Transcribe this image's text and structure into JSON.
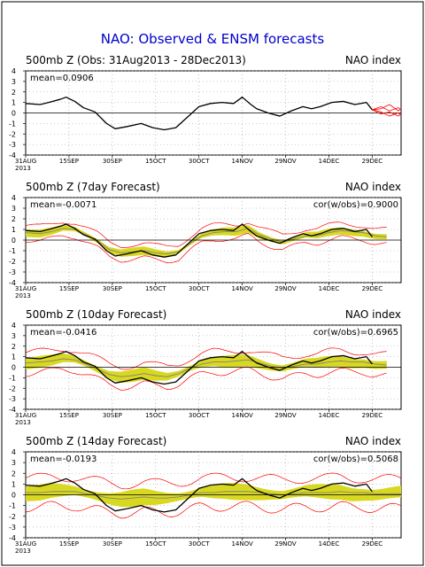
{
  "page": {
    "main_title": "NAO: Observed & ENSM forecasts",
    "year_label": "2013"
  },
  "colors": {
    "title": "#0000cc",
    "observed": "#000000",
    "ensemble": "#ff0000",
    "spread": "#d8d820",
    "ensemble_mean": "#808080",
    "zero_line": "#000000",
    "grid": "#999999"
  },
  "chart_data": [
    {
      "type": "line",
      "title": "500mb Z (Obs: 31Aug2013 - 28Dec2013)",
      "right_label": "NAO index",
      "mean_label": "mean=0.0906",
      "cor_label": "",
      "xlim": [
        0,
        130
      ],
      "ylim": [
        -4,
        4
      ],
      "yticks": [
        -4,
        -3,
        -2,
        -1,
        0,
        1,
        2,
        3,
        4
      ],
      "xtick_labels": [
        "31AUG",
        "15SEP",
        "30SEP",
        "15OCT",
        "30OCT",
        "14NOV",
        "29NOV",
        "14DEC",
        "29DEC"
      ],
      "xticks": [
        0,
        15,
        30,
        45,
        60,
        75,
        90,
        105,
        120
      ],
      "grid": "dotted",
      "observed": {
        "x": [
          0,
          5,
          8,
          12,
          14,
          17,
          20,
          24,
          28,
          31,
          35,
          40,
          44,
          48,
          52,
          56,
          60,
          64,
          68,
          72,
          75,
          78,
          80,
          84,
          88,
          92,
          96,
          99,
          102,
          106,
          110,
          114,
          118,
          120
        ],
        "y": [
          0.9,
          0.8,
          1.0,
          1.3,
          1.5,
          1.1,
          0.5,
          0.1,
          -1.0,
          -1.5,
          -1.3,
          -1.0,
          -1.4,
          -1.6,
          -1.4,
          -0.4,
          0.6,
          0.9,
          1.0,
          0.9,
          1.5,
          0.8,
          0.4,
          0.0,
          -0.3,
          0.2,
          0.6,
          0.4,
          0.6,
          1.0,
          1.1,
          0.8,
          1.0,
          0.3
        ]
      },
      "ensemble_forecasts": [
        {
          "x": [
            120,
            123,
            126,
            129,
            130
          ],
          "y": [
            0.3,
            0.6,
            0.2,
            0.5,
            0.3
          ]
        },
        {
          "x": [
            120,
            123,
            126,
            129,
            130
          ],
          "y": [
            0.3,
            0.1,
            -0.3,
            0.0,
            -0.2
          ]
        },
        {
          "x": [
            120,
            123,
            126,
            129,
            130
          ],
          "y": [
            0.3,
            0.4,
            0.8,
            0.2,
            0.4
          ]
        },
        {
          "x": [
            120,
            123,
            126,
            129,
            130
          ],
          "y": [
            0.3,
            -0.1,
            0.1,
            -0.3,
            -0.1
          ]
        }
      ]
    },
    {
      "type": "line",
      "title": "500mb Z (7day Forecast)",
      "right_label": "NAO index",
      "mean_label": "mean=-0.0071",
      "cor_label": "cor(w/obs)=0.9000",
      "xlim": [
        0,
        130
      ],
      "ylim": [
        -4,
        4
      ],
      "yticks": [
        -4,
        -3,
        -2,
        -1,
        0,
        1,
        2,
        3,
        4
      ],
      "xtick_labels": [
        "31AUG",
        "15SEP",
        "30SEP",
        "15OCT",
        "30OCT",
        "14NOV",
        "29NOV",
        "14DEC",
        "29DEC"
      ],
      "xticks": [
        0,
        15,
        30,
        45,
        60,
        75,
        90,
        105,
        120
      ],
      "grid": "dotted",
      "spread_halfwidth": 0.4,
      "envelope_halfwidth": 0.9,
      "observed": {
        "x": [
          0,
          5,
          8,
          12,
          14,
          17,
          20,
          24,
          28,
          31,
          35,
          40,
          44,
          48,
          52,
          56,
          60,
          64,
          68,
          72,
          75,
          78,
          80,
          84,
          88,
          92,
          96,
          99,
          102,
          106,
          110,
          114,
          118,
          120
        ],
        "y": [
          0.9,
          0.8,
          1.0,
          1.3,
          1.5,
          1.1,
          0.5,
          0.1,
          -1.0,
          -1.5,
          -1.3,
          -1.0,
          -1.4,
          -1.6,
          -1.4,
          -0.4,
          0.6,
          0.9,
          1.0,
          0.9,
          1.5,
          0.8,
          0.4,
          0.0,
          -0.3,
          0.2,
          0.6,
          0.4,
          0.6,
          1.0,
          1.1,
          0.8,
          1.0,
          0.3
        ]
      },
      "ensemble_mean": {
        "x": [
          0,
          5,
          9,
          13,
          17,
          21,
          25,
          29,
          33,
          37,
          41,
          45,
          49,
          53,
          57,
          61,
          65,
          69,
          73,
          77,
          81,
          85,
          89,
          93,
          97,
          101,
          105,
          109,
          113,
          117,
          121,
          125
        ],
        "y": [
          0.7,
          0.6,
          0.8,
          1.1,
          1.0,
          0.5,
          -0.1,
          -0.9,
          -1.2,
          -1.1,
          -1.0,
          -1.2,
          -1.3,
          -1.1,
          -0.3,
          0.4,
          0.7,
          0.8,
          0.8,
          1.1,
          0.5,
          0.1,
          -0.2,
          0.1,
          0.4,
          0.4,
          0.7,
          0.9,
          0.8,
          0.7,
          0.4,
          0.3
        ]
      }
    },
    {
      "type": "line",
      "title": "500mb Z (10day Forecast)",
      "right_label": "NAO index",
      "mean_label": "mean=-0.0416",
      "cor_label": "cor(w/obs)=0.6965",
      "xlim": [
        0,
        130
      ],
      "ylim": [
        -4,
        4
      ],
      "yticks": [
        -4,
        -3,
        -2,
        -1,
        0,
        1,
        2,
        3,
        4
      ],
      "xtick_labels": [
        "31AUG",
        "15SEP",
        "30SEP",
        "15OCT",
        "30OCT",
        "14NOV",
        "29NOV",
        "14DEC",
        "29DEC"
      ],
      "xticks": [
        0,
        15,
        30,
        45,
        60,
        75,
        90,
        105,
        120
      ],
      "grid": "dotted",
      "spread_halfwidth": 0.6,
      "envelope_halfwidth": 1.3,
      "observed": {
        "x": [
          0,
          5,
          8,
          12,
          14,
          17,
          20,
          24,
          28,
          31,
          35,
          40,
          44,
          48,
          52,
          56,
          60,
          64,
          68,
          72,
          75,
          78,
          80,
          84,
          88,
          92,
          96,
          99,
          102,
          106,
          110,
          114,
          118,
          120
        ],
        "y": [
          0.9,
          0.8,
          1.0,
          1.3,
          1.5,
          1.1,
          0.5,
          0.1,
          -1.0,
          -1.5,
          -1.3,
          -1.0,
          -1.4,
          -1.6,
          -1.4,
          -0.4,
          0.6,
          0.9,
          1.0,
          0.9,
          1.5,
          0.8,
          0.4,
          0.0,
          -0.3,
          0.2,
          0.6,
          0.4,
          0.6,
          1.0,
          1.1,
          0.8,
          1.0,
          0.3
        ]
      },
      "ensemble_mean": {
        "x": [
          0,
          5,
          9,
          13,
          17,
          21,
          25,
          29,
          33,
          37,
          41,
          45,
          49,
          53,
          57,
          61,
          65,
          69,
          73,
          77,
          81,
          85,
          89,
          93,
          97,
          101,
          105,
          109,
          113,
          117,
          121,
          125
        ],
        "y": [
          0.4,
          0.5,
          0.6,
          0.8,
          0.7,
          0.3,
          -0.2,
          -0.7,
          -0.9,
          -0.8,
          -0.6,
          -0.8,
          -0.9,
          -0.6,
          -0.1,
          0.3,
          0.5,
          0.5,
          0.6,
          0.7,
          0.4,
          0.1,
          -0.1,
          0.1,
          0.3,
          0.3,
          0.5,
          0.6,
          0.5,
          0.5,
          0.3,
          0.2
        ]
      }
    },
    {
      "type": "line",
      "title": "500mb Z (14day Forecast)",
      "right_label": "NAO index",
      "mean_label": "mean=-0.0193",
      "cor_label": "cor(w/obs)=0.5068",
      "xlim": [
        0,
        130
      ],
      "ylim": [
        -4,
        4
      ],
      "yticks": [
        -4,
        -3,
        -2,
        -1,
        0,
        1,
        2,
        3,
        4
      ],
      "xtick_labels": [
        "31AUG",
        "15SEP",
        "30SEP",
        "15OCT",
        "30OCT",
        "14NOV",
        "29NOV",
        "14DEC",
        "29DEC"
      ],
      "xticks": [
        0,
        15,
        30,
        45,
        60,
        75,
        90,
        105,
        120
      ],
      "grid": "dotted",
      "spread_halfwidth": 0.8,
      "envelope_halfwidth": 1.8,
      "observed": {
        "x": [
          0,
          5,
          8,
          12,
          14,
          17,
          20,
          24,
          28,
          31,
          35,
          40,
          44,
          48,
          52,
          56,
          60,
          64,
          68,
          72,
          75,
          78,
          80,
          84,
          88,
          92,
          96,
          99,
          102,
          106,
          110,
          114,
          118,
          120
        ],
        "y": [
          0.9,
          0.8,
          1.0,
          1.3,
          1.5,
          1.1,
          0.5,
          0.1,
          -1.0,
          -1.5,
          -1.3,
          -1.0,
          -1.4,
          -1.6,
          -1.4,
          -0.4,
          0.6,
          0.9,
          1.0,
          0.9,
          1.5,
          0.8,
          0.4,
          0.0,
          -0.3,
          0.2,
          0.6,
          0.4,
          0.6,
          1.0,
          1.1,
          0.8,
          1.0,
          0.3
        ]
      },
      "ensemble_mean": {
        "x": [
          0,
          5,
          9,
          13,
          17,
          21,
          25,
          29,
          33,
          37,
          41,
          45,
          49,
          53,
          57,
          61,
          65,
          69,
          73,
          77,
          81,
          85,
          89,
          93,
          97,
          101,
          105,
          109,
          113,
          117,
          121,
          125,
          130
        ],
        "y": [
          0.2,
          0.2,
          0.3,
          0.3,
          0.3,
          0.1,
          -0.1,
          -0.3,
          -0.4,
          -0.3,
          -0.2,
          -0.3,
          -0.3,
          -0.2,
          0.0,
          0.2,
          0.2,
          0.3,
          0.3,
          0.3,
          0.2,
          0.1,
          0.0,
          0.1,
          0.2,
          0.2,
          0.2,
          0.3,
          0.2,
          0.2,
          0.1,
          0.1,
          0.1
        ]
      }
    }
  ]
}
